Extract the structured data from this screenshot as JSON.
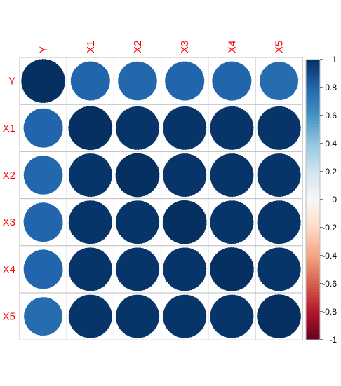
{
  "chart_data": {
    "type": "heatmap",
    "variables": [
      "Y",
      "X1",
      "X2",
      "X3",
      "X4",
      "X5"
    ],
    "matrix": [
      [
        1.0,
        0.8,
        0.79,
        0.8,
        0.8,
        0.77
      ],
      [
        0.8,
        1.0,
        0.98,
        0.98,
        0.98,
        0.98
      ],
      [
        0.79,
        0.98,
        1.0,
        0.98,
        0.98,
        0.98
      ],
      [
        0.8,
        0.98,
        0.98,
        1.0,
        0.98,
        0.98
      ],
      [
        0.8,
        0.98,
        0.98,
        0.98,
        1.0,
        0.98
      ],
      [
        0.77,
        0.98,
        0.98,
        0.98,
        0.98,
        1.0
      ]
    ],
    "colorbar": {
      "ticks": [
        1,
        0.8,
        0.6,
        0.4,
        0.2,
        0,
        -0.2,
        -0.4,
        -0.6,
        -0.8,
        -1
      ],
      "tick_labels": [
        "1",
        "0.8",
        "0.6",
        "0.4",
        "0.2",
        "0",
        "-0.2",
        "-0.4",
        "-0.6",
        "-0.8",
        "-1"
      ],
      "range": [
        -1,
        1
      ]
    },
    "colors": {
      "label": "#ff0000",
      "negative": "#67001f",
      "neutral": "#f7f7f7",
      "positive": "#053061",
      "grid": "#bebebe"
    },
    "glyph": "circle",
    "grid": true,
    "legend": "right"
  }
}
